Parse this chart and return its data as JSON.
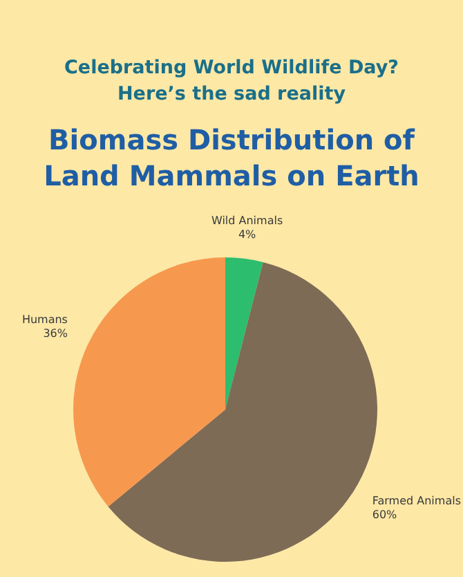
{
  "chart_data": {
    "type": "pie",
    "subtitle": "Celebrating World Wildlife Day?\nHere’s the sad reality",
    "title": "Biomass Distribution of\nLand Mammals on Earth",
    "categories": [
      "Wild Animals",
      "Farmed Animals",
      "Humans"
    ],
    "values": [
      4,
      60,
      36
    ],
    "value_labels": [
      "4%",
      "60%",
      "36%"
    ],
    "colors": [
      "#2dbd6e",
      "#7d6b56",
      "#f7984f"
    ]
  }
}
